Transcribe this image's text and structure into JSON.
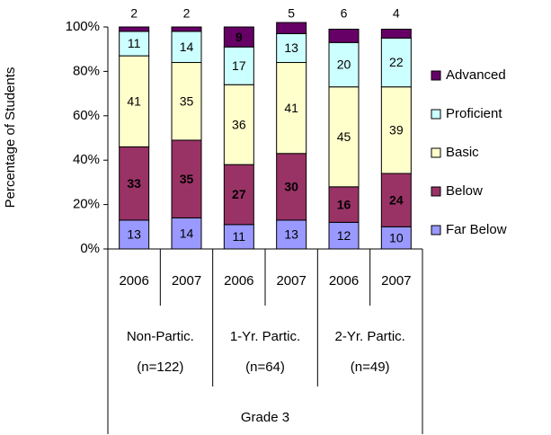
{
  "chart_data": {
    "type": "stacked_bar",
    "y_label": "Percentage of Students",
    "categories": [
      "2006",
      "2007",
      "2006",
      "2007",
      "2006",
      "2007"
    ],
    "groups": [
      {
        "label": "Non-Partic.",
        "n": "(n=122)"
      },
      {
        "label": "1-Yr. Partic.",
        "n": "(n=64)"
      },
      {
        "label": "2-Yr. Partic.",
        "n": "(n=49)"
      }
    ],
    "group_size": 2,
    "super_category": "Grade 3",
    "series": [
      {
        "name": "Far Below",
        "color": "#9999ff",
        "label_color": "#000000",
        "values": [
          13,
          14,
          11,
          13,
          12,
          10
        ]
      },
      {
        "name": "Below",
        "color": "#993366",
        "label_color": "#ffffff",
        "values": [
          33,
          35,
          27,
          30,
          16,
          24
        ]
      },
      {
        "name": "Basic",
        "color": "#ffffcc",
        "label_color": "#000000",
        "values": [
          41,
          35,
          36,
          41,
          45,
          39
        ]
      },
      {
        "name": "Proficient",
        "color": "#ccffff",
        "label_color": "#000000",
        "values": [
          11,
          14,
          17,
          13,
          20,
          22
        ]
      },
      {
        "name": "Advanced",
        "color": "#660066",
        "label_color": "#ffffff",
        "values": [
          2,
          2,
          9,
          5,
          6,
          4
        ]
      }
    ],
    "ylim": [
      0,
      100
    ],
    "yticks": [
      {
        "value": 0,
        "label": "0%"
      },
      {
        "value": 20,
        "label": "20%"
      },
      {
        "value": 40,
        "label": "40%"
      },
      {
        "value": 60,
        "label": "60%"
      },
      {
        "value": 80,
        "label": "80%"
      },
      {
        "value": 100,
        "label": "100%"
      }
    ],
    "legend": "right"
  }
}
